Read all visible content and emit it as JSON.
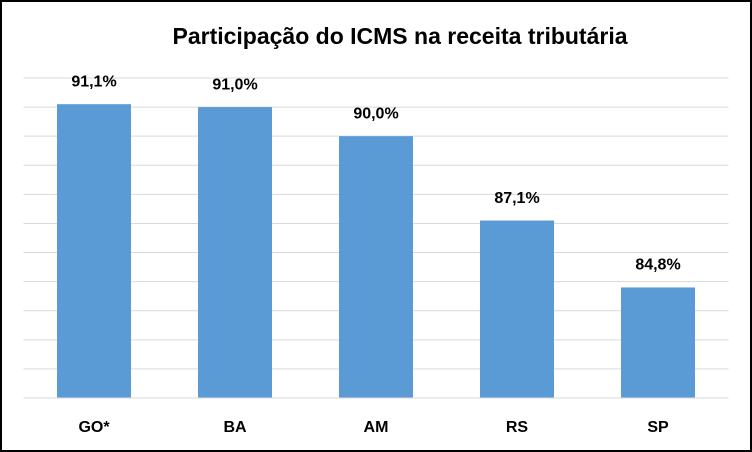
{
  "chart_data": {
    "type": "bar",
    "title": "Participação do ICMS na receita tributária",
    "categories": [
      "GO*",
      "BA",
      "AM",
      "RS",
      "SP"
    ],
    "values": [
      91.1,
      91.0,
      90.0,
      87.1,
      84.8
    ],
    "value_labels": [
      "91,1%",
      "91,0%",
      "90,0%",
      "87,1%",
      "84,8%"
    ],
    "color": "#5b9bd5",
    "ylim": [
      81,
      92
    ],
    "yticks": [
      81,
      82,
      83,
      84,
      85,
      86,
      87,
      88,
      89,
      90,
      91,
      92
    ],
    "grid": true
  }
}
